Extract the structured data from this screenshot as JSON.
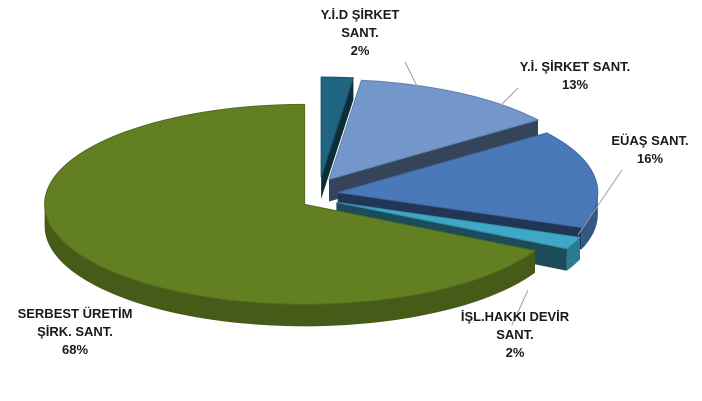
{
  "chart_data": {
    "type": "pie",
    "categories": [
      "Y.İ.D  ŞİRKET SANT.",
      "Y.İ. ŞİRKET SANT.",
      "EÜAŞ SANT.",
      "İŞL.HAKKI DEVİR SANT.",
      "SERBEST ÜRETİM ŞİRK. SANT."
    ],
    "values": [
      2,
      13,
      16,
      2,
      68
    ],
    "value_labels": [
      "2%",
      "13%",
      "16%",
      "2%",
      "68%"
    ],
    "colors": [
      "#1f6480",
      "#7396cb",
      "#4a79ba",
      "#3ea8c6",
      "#627f22"
    ]
  }
}
